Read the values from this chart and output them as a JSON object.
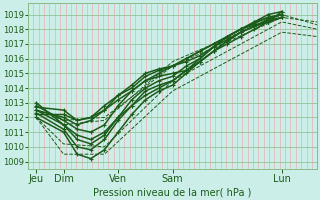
{
  "bg_color": "#cceee8",
  "grid_color_v": "#e8b0b0",
  "grid_color_h": "#88bb88",
  "line_color": "#1a5c1a",
  "ylabel_text": "Pression niveau de la mer( hPa )",
  "xtick_labels": [
    "Jeu",
    "Dim",
    "Ven",
    "Sam",
    "Lun"
  ],
  "xtick_positions": [
    0,
    1,
    3,
    5,
    9
  ],
  "ylim": [
    1008.5,
    1019.8
  ],
  "yticks": [
    1009,
    1010,
    1011,
    1012,
    1013,
    1014,
    1015,
    1016,
    1017,
    1018,
    1019
  ],
  "xlim": [
    -0.3,
    10.3
  ],
  "num_v_lines": 55,
  "lines": [
    {
      "x": [
        0,
        1,
        1.5,
        2.0,
        2.5,
        3,
        3.5,
        4,
        4.5,
        5,
        5.5,
        6,
        6.5,
        7,
        7.5,
        8,
        8.5,
        9
      ],
      "y": [
        1012.5,
        1012.0,
        1011.5,
        1011.8,
        1012.5,
        1013.5,
        1014.2,
        1015.0,
        1015.3,
        1015.5,
        1015.8,
        1016.2,
        1016.8,
        1017.5,
        1018.0,
        1018.5,
        1019.0,
        1019.2
      ],
      "style": "solid",
      "marker": "+"
    },
    {
      "x": [
        0,
        1,
        1.5,
        2.0,
        2.5,
        3,
        3.5,
        4,
        4.5,
        5,
        5.5,
        6,
        6.5,
        7,
        7.5,
        8,
        8.5,
        9
      ],
      "y": [
        1012.8,
        1011.8,
        1011.2,
        1011.0,
        1011.5,
        1012.8,
        1013.8,
        1014.5,
        1014.8,
        1015.0,
        1015.2,
        1015.8,
        1016.5,
        1017.2,
        1017.8,
        1018.2,
        1018.7,
        1019.0
      ],
      "style": "solid",
      "marker": "+"
    },
    {
      "x": [
        0,
        1,
        1.5,
        2.0,
        2.5,
        3,
        3.5,
        4,
        4.5,
        5,
        5.5,
        6,
        6.5,
        7,
        7.5,
        8,
        8.5,
        9
      ],
      "y": [
        1013.0,
        1011.5,
        1010.5,
        1010.2,
        1010.8,
        1012.0,
        1013.2,
        1014.0,
        1014.5,
        1014.8,
        1015.5,
        1016.0,
        1016.8,
        1017.5,
        1018.0,
        1018.3,
        1018.5,
        1018.8
      ],
      "style": "solid",
      "marker": "+"
    },
    {
      "x": [
        0,
        1,
        1.5,
        2.0,
        2.5,
        3,
        3.5,
        4,
        4.5,
        5,
        5.5,
        6,
        6.5,
        7,
        7.5,
        8,
        8.5,
        9
      ],
      "y": [
        1012.2,
        1012.2,
        1011.8,
        1012.0,
        1012.8,
        1013.5,
        1014.0,
        1014.8,
        1015.2,
        1015.5,
        1016.0,
        1016.5,
        1017.0,
        1017.5,
        1018.0,
        1018.5,
        1018.8,
        1019.0
      ],
      "style": "solid",
      "marker": "+"
    },
    {
      "x": [
        0,
        1,
        1.5,
        2.0,
        2.5,
        3,
        3.5,
        4,
        4.5,
        5,
        5.5,
        6,
        6.5,
        7,
        7.5,
        8,
        8.5,
        9
      ],
      "y": [
        1012.0,
        1011.0,
        1009.5,
        1009.2,
        1009.8,
        1011.0,
        1012.2,
        1013.2,
        1013.8,
        1014.2,
        1015.0,
        1015.8,
        1016.5,
        1017.0,
        1017.5,
        1018.0,
        1018.5,
        1019.2
      ],
      "style": "solid",
      "marker": "+"
    },
    {
      "x": [
        0,
        1,
        1.5,
        2.0,
        2.5,
        3,
        3.5,
        4,
        4.5,
        5,
        5.5,
        6,
        6.5,
        7,
        7.5,
        8,
        8.5,
        9
      ],
      "y": [
        1012.5,
        1011.5,
        1010.8,
        1010.5,
        1011.0,
        1012.0,
        1012.8,
        1013.8,
        1014.2,
        1014.5,
        1015.2,
        1015.8,
        1016.5,
        1017.2,
        1017.8,
        1018.2,
        1018.6,
        1018.8
      ],
      "style": "solid",
      "marker": "+"
    },
    {
      "x": [
        0,
        1,
        1.5,
        2.0,
        2.5,
        3,
        3.5,
        4,
        4.5,
        5,
        5.5,
        6,
        6.5,
        7,
        7.5,
        8,
        8.5,
        9
      ],
      "y": [
        1012.7,
        1012.5,
        1011.8,
        1012.0,
        1012.5,
        1013.2,
        1013.8,
        1014.5,
        1015.0,
        1015.5,
        1016.0,
        1016.5,
        1017.0,
        1017.5,
        1018.0,
        1018.4,
        1018.8,
        1019.0
      ],
      "style": "solid",
      "marker": "+"
    },
    {
      "x": [
        0,
        1,
        1.5,
        2.0,
        2.5,
        3,
        3.5,
        4,
        4.5,
        5,
        5.5,
        6,
        6.5,
        7,
        7.5,
        8,
        8.5,
        9
      ],
      "y": [
        1012.3,
        1011.2,
        1010.0,
        1009.8,
        1010.5,
        1011.8,
        1012.8,
        1013.5,
        1014.0,
        1014.5,
        1015.2,
        1016.0,
        1016.8,
        1017.3,
        1017.8,
        1018.2,
        1018.5,
        1018.8
      ],
      "style": "solid",
      "marker": "+"
    },
    {
      "x": [
        0,
        1,
        2.5,
        5,
        9,
        10.3
      ],
      "y": [
        1013.0,
        1011.5,
        1011.8,
        1015.8,
        1019.0,
        1018.3
      ],
      "style": "dashed",
      "marker": null
    },
    {
      "x": [
        0,
        1,
        2.5,
        5,
        9,
        10.3
      ],
      "y": [
        1012.0,
        1010.2,
        1010.0,
        1014.5,
        1018.5,
        1018.0
      ],
      "style": "dashed",
      "marker": null
    },
    {
      "x": [
        0,
        1,
        2.5,
        5,
        9,
        10.3
      ],
      "y": [
        1012.5,
        1011.8,
        1012.0,
        1015.5,
        1018.8,
        1018.5
      ],
      "style": "dashed",
      "marker": null
    },
    {
      "x": [
        0,
        1,
        2.5,
        5,
        9,
        10.3
      ],
      "y": [
        1012.0,
        1009.5,
        1009.5,
        1013.8,
        1017.8,
        1017.5
      ],
      "style": "dashed",
      "marker": null
    }
  ]
}
